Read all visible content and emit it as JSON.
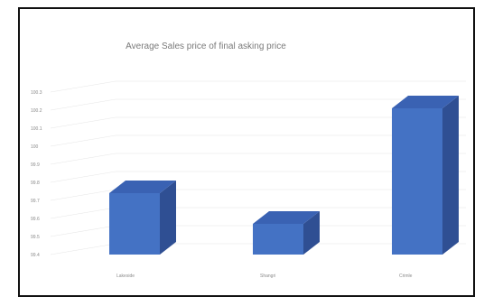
{
  "chart_data": {
    "type": "bar",
    "title": "Average Sales price of final asking price",
    "categories": [
      "Lakeside",
      "Shangri",
      "Crimle"
    ],
    "values": [
      99.74,
      99.57,
      100.21
    ],
    "ylim": [
      99.4,
      100.3
    ],
    "y_ticks": [
      "100.3",
      "100.2",
      "100.1",
      "100",
      "99.9",
      "99.8",
      "99.7",
      "99.6",
      "99.5",
      "99.4"
    ],
    "grid": true,
    "legend": "none",
    "bar_colors": {
      "front": "#4472c4",
      "side": "#2f4f93",
      "top": "#3a62b3"
    }
  }
}
